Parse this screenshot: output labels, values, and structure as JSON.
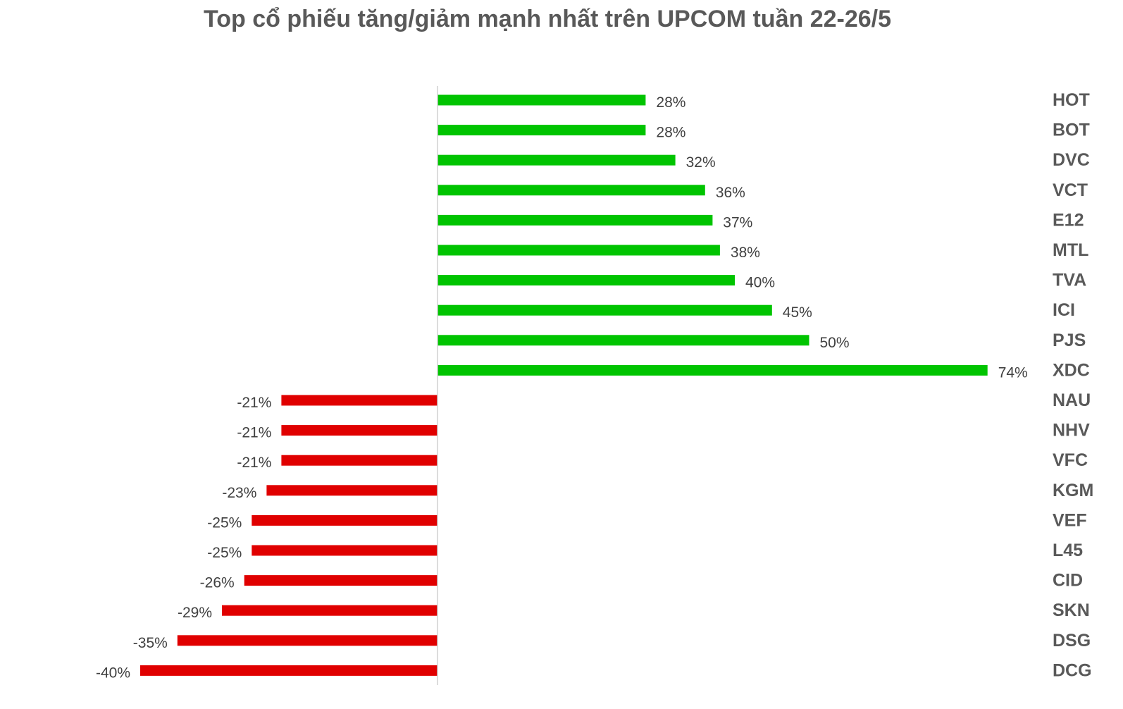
{
  "title": "Top cổ phiếu tăng/giảm mạnh nhất trên UPCOM tuần 22-26/5",
  "colors": {
    "positive": "#00c400",
    "negative": "#e00000",
    "axis": "#d0d0d0",
    "title": "#595959",
    "label": "#404040"
  },
  "chart_data": {
    "type": "bar",
    "orientation": "horizontal",
    "title": "Top cổ phiếu tăng/giảm mạnh nhất trên UPCOM tuần 22-26/5",
    "categories": [
      "HOT",
      "BOT",
      "DVC",
      "VCT",
      "E12",
      "MTL",
      "TVA",
      "ICI",
      "PJS",
      "XDC",
      "NAU",
      "NHV",
      "VFC",
      "KGM",
      "VEF",
      "L45",
      "CID",
      "SKN",
      "DSG",
      "DCG"
    ],
    "values": [
      28,
      28,
      32,
      36,
      37,
      38,
      40,
      45,
      50,
      74,
      -21,
      -21,
      -21,
      -23,
      -25,
      -25,
      -26,
      -29,
      -35,
      -40
    ],
    "labels": [
      "28%",
      "28%",
      "32%",
      "36%",
      "37%",
      "38%",
      "40%",
      "45%",
      "50%",
      "74%",
      "-21%",
      "-21%",
      "-21%",
      "-23%",
      "-25%",
      "-25%",
      "-26%",
      "-29%",
      "-35%",
      "-40%"
    ],
    "unit": "%",
    "xlim": [
      -40,
      74
    ],
    "grid": false,
    "legend": "none",
    "category_labels_position": "right"
  }
}
